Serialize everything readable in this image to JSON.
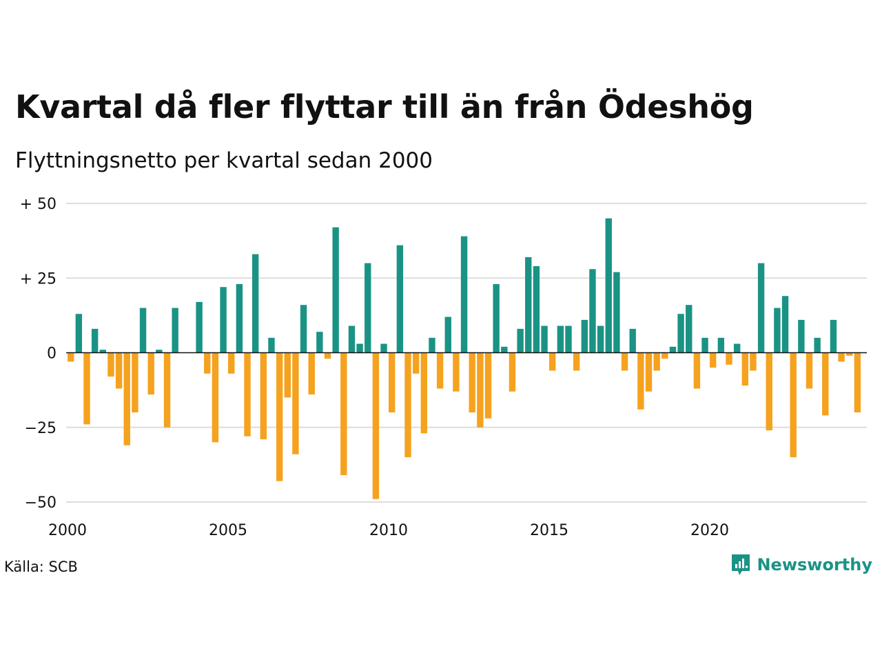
{
  "title": "Kvartal då fler flyttar till än från Ödeshög",
  "subtitle": "Flyttningsnetto per kvartal sedan 2000",
  "source": "Källa: SCB",
  "brand": {
    "name": "Newsworthy",
    "icon": "newsworthy-logo-icon"
  },
  "colors": {
    "positive": "#1a9385",
    "negative": "#f5a21f",
    "grid": "#dddddd",
    "zero_line": "#111111"
  },
  "chart_data": {
    "type": "bar",
    "title": "Kvartal då fler flyttar till än från Ödeshög",
    "subtitle": "Flyttningsnetto per kvartal sedan 2000",
    "ylim": [
      -50,
      50
    ],
    "y_ticks": [
      {
        "value": 50,
        "label": "+ 50"
      },
      {
        "value": 25,
        "label": "+ 25"
      },
      {
        "value": 0,
        "label": "0"
      },
      {
        "value": -25,
        "label": "−25"
      },
      {
        "value": -50,
        "label": "−50"
      }
    ],
    "x_ticks": [
      "2000",
      "2005",
      "2010",
      "2015",
      "2020"
    ],
    "grid": true,
    "start_year": 2000,
    "values": [
      -3,
      13,
      -24,
      8,
      1,
      -8,
      -12,
      -31,
      -20,
      15,
      -14,
      1,
      -25,
      15,
      0,
      0,
      17,
      -7,
      -30,
      22,
      -7,
      23,
      -28,
      33,
      -29,
      5,
      -43,
      -15,
      -34,
      16,
      -14,
      7,
      -2,
      42,
      -41,
      9,
      3,
      30,
      -49,
      3,
      -20,
      36,
      -35,
      -7,
      -27,
      5,
      -12,
      12,
      -13,
      39,
      -20,
      -25,
      -22,
      23,
      2,
      -13,
      8,
      32,
      29,
      9,
      -6,
      9,
      9,
      -6,
      11,
      28,
      9,
      45,
      27,
      -6,
      8,
      -19,
      -13,
      -6,
      -2,
      2,
      13,
      16,
      -12,
      5,
      -5,
      5,
      -4,
      3,
      -11,
      -6,
      30,
      -26,
      15,
      19,
      -35,
      11,
      -12,
      5,
      -21,
      11,
      -3,
      -1,
      -20
    ]
  }
}
